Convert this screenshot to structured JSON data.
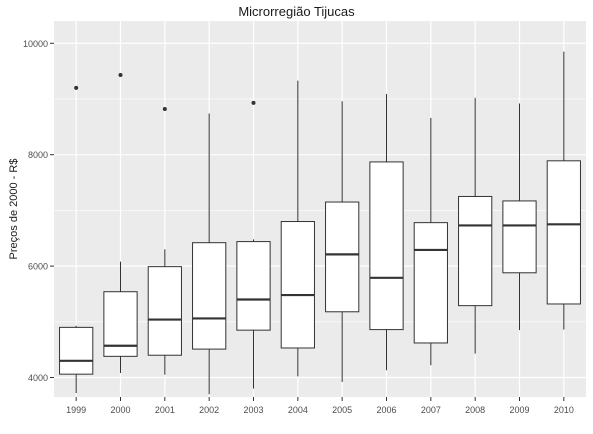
{
  "chart_data": {
    "type": "boxplot",
    "title": "Microrregião  Tijucas",
    "xlabel": "",
    "ylabel": "Preços de 2000 - R$",
    "ylim": [
      3650,
      10400
    ],
    "y_ticks": [
      4000,
      6000,
      8000,
      10000
    ],
    "y_tick_labels": [
      "4000",
      "6000",
      "8000",
      "10000"
    ],
    "grid": true,
    "categories": [
      "1999",
      "2000",
      "2001",
      "2002",
      "2003",
      "2004",
      "2005",
      "2006",
      "2007",
      "2008",
      "2009",
      "2010"
    ],
    "boxes": [
      {
        "x": "1999",
        "min": 3720,
        "q1": 4060,
        "median": 4300,
        "q3": 4900,
        "max": 4930,
        "outliers": [
          9200
        ]
      },
      {
        "x": "2000",
        "min": 4080,
        "q1": 4380,
        "median": 4570,
        "q3": 5540,
        "max": 6080,
        "outliers": [
          9430
        ]
      },
      {
        "x": "2001",
        "min": 4050,
        "q1": 4400,
        "median": 5040,
        "q3": 5990,
        "max": 6300,
        "outliers": [
          8820
        ]
      },
      {
        "x": "2002",
        "min": 3700,
        "q1": 4510,
        "median": 5060,
        "q3": 6420,
        "max": 8740,
        "outliers": []
      },
      {
        "x": "2003",
        "min": 3800,
        "q1": 4850,
        "median": 5400,
        "q3": 6440,
        "max": 6480,
        "outliers": [
          8930
        ]
      },
      {
        "x": "2004",
        "min": 4020,
        "q1": 4530,
        "median": 5480,
        "q3": 6800,
        "max": 9330,
        "outliers": []
      },
      {
        "x": "2005",
        "min": 3920,
        "q1": 5180,
        "median": 6210,
        "q3": 7150,
        "max": 8960,
        "outliers": []
      },
      {
        "x": "2006",
        "min": 4130,
        "q1": 4860,
        "median": 5790,
        "q3": 7870,
        "max": 9090,
        "outliers": []
      },
      {
        "x": "2007",
        "min": 4220,
        "q1": 4620,
        "median": 6290,
        "q3": 6780,
        "max": 8660,
        "outliers": []
      },
      {
        "x": "2008",
        "min": 4430,
        "q1": 5290,
        "median": 6730,
        "q3": 7250,
        "max": 9020,
        "outliers": []
      },
      {
        "x": "2009",
        "min": 4850,
        "q1": 5880,
        "median": 6730,
        "q3": 7170,
        "max": 8920,
        "outliers": []
      },
      {
        "x": "2010",
        "min": 4860,
        "q1": 5320,
        "median": 6750,
        "q3": 7890,
        "max": 9850,
        "outliers": []
      }
    ],
    "colors": {
      "panel": "#ebebeb",
      "grid": "#ffffff",
      "box_fill": "#ffffff",
      "box_line": "#333333",
      "outlier": "#333333"
    }
  }
}
